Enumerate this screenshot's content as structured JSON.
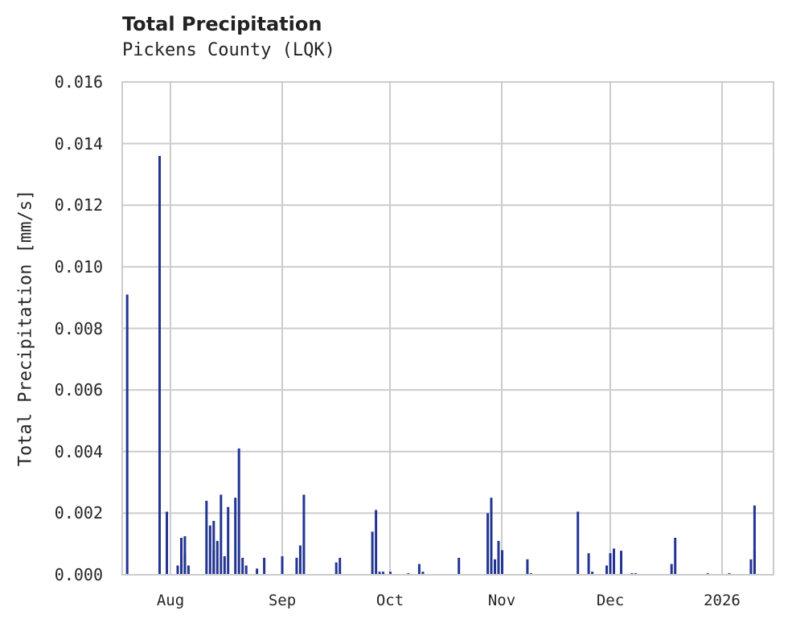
{
  "chart_data": {
    "type": "bar",
    "title": "Total Precipitation",
    "subtitle": "Pickens County (LQK)",
    "xlabel": "",
    "ylabel": "Total Precipitation [mm/s]",
    "ylim": [
      0,
      0.016
    ],
    "yticks": [
      "0.000",
      "0.002",
      "0.004",
      "0.006",
      "0.008",
      "0.010",
      "0.012",
      "0.014",
      "0.016"
    ],
    "xticks": [
      "Aug",
      "Sep",
      "Oct",
      "Nov",
      "Dec",
      "2026"
    ],
    "grid": true,
    "legend": null,
    "bar_color": "#233592",
    "x_unit": "date (2025-07-18 to 2026-01-12 approx.)",
    "points": [
      {
        "date": "2025-07-20",
        "value": 0.0091
      },
      {
        "date": "2025-07-29",
        "value": 0.0136
      },
      {
        "date": "2025-07-31",
        "value": 0.00205
      },
      {
        "date": "2025-08-03",
        "value": 0.0003
      },
      {
        "date": "2025-08-04",
        "value": 0.0012
      },
      {
        "date": "2025-08-05",
        "value": 0.00125
      },
      {
        "date": "2025-08-05",
        "value": 0.0007
      },
      {
        "date": "2025-08-06",
        "value": 0.0003
      },
      {
        "date": "2025-08-11",
        "value": 0.0024
      },
      {
        "date": "2025-08-12",
        "value": 0.0016
      },
      {
        "date": "2025-08-13",
        "value": 0.00175
      },
      {
        "date": "2025-08-13",
        "value": 0.0008
      },
      {
        "date": "2025-08-14",
        "value": 0.0011
      },
      {
        "date": "2025-08-15",
        "value": 0.0026
      },
      {
        "date": "2025-08-16",
        "value": 0.0006
      },
      {
        "date": "2025-08-17",
        "value": 0.0022
      },
      {
        "date": "2025-08-19",
        "value": 0.0025
      },
      {
        "date": "2025-08-20",
        "value": 0.0041
      },
      {
        "date": "2025-08-21",
        "value": 0.00055
      },
      {
        "date": "2025-08-22",
        "value": 0.0003
      },
      {
        "date": "2025-08-25",
        "value": 0.0002
      },
      {
        "date": "2025-08-27",
        "value": 0.00055
      },
      {
        "date": "2025-09-01",
        "value": 0.0006
      },
      {
        "date": "2025-09-05",
        "value": 0.00055
      },
      {
        "date": "2025-09-06",
        "value": 0.00095
      },
      {
        "date": "2025-09-07",
        "value": 0.0026
      },
      {
        "date": "2025-09-16",
        "value": 0.0004
      },
      {
        "date": "2025-09-17",
        "value": 0.00055
      },
      {
        "date": "2025-09-26",
        "value": 0.0014
      },
      {
        "date": "2025-09-27",
        "value": 0.0021
      },
      {
        "date": "2025-09-28",
        "value": 0.0001
      },
      {
        "date": "2025-09-29",
        "value": 0.0001
      },
      {
        "date": "2025-10-01",
        "value": 0.0001
      },
      {
        "date": "2025-10-06",
        "value": 5e-05
      },
      {
        "date": "2025-10-09",
        "value": 0.00035
      },
      {
        "date": "2025-10-10",
        "value": 0.0001
      },
      {
        "date": "2025-10-20",
        "value": 0.00055
      },
      {
        "date": "2025-10-28",
        "value": 0.002
      },
      {
        "date": "2025-10-29",
        "value": 0.0025
      },
      {
        "date": "2025-10-30",
        "value": 0.0005
      },
      {
        "date": "2025-10-31",
        "value": 0.0011
      },
      {
        "date": "2025-11-01",
        "value": 0.0008
      },
      {
        "date": "2025-11-08",
        "value": 0.0005
      },
      {
        "date": "2025-11-09",
        "value": 5e-05
      },
      {
        "date": "2025-11-22",
        "value": 0.00205
      },
      {
        "date": "2025-11-25",
        "value": 0.0007
      },
      {
        "date": "2025-11-26",
        "value": 0.0001
      },
      {
        "date": "2025-11-30",
        "value": 0.0003
      },
      {
        "date": "2025-12-01",
        "value": 0.0007
      },
      {
        "date": "2025-12-02",
        "value": 0.00085
      },
      {
        "date": "2025-12-04",
        "value": 0.00078
      },
      {
        "date": "2025-12-07",
        "value": 5e-05
      },
      {
        "date": "2025-12-08",
        "value": 5e-05
      },
      {
        "date": "2025-12-18",
        "value": 0.00035
      },
      {
        "date": "2025-12-19",
        "value": 0.0012
      },
      {
        "date": "2025-12-28",
        "value": 5e-05
      },
      {
        "date": "2026-01-03",
        "value": 5e-05
      },
      {
        "date": "2026-01-09",
        "value": 0.0005
      },
      {
        "date": "2026-01-10",
        "value": 0.00225
      },
      {
        "date": "2026-01-10",
        "value": 0.0008
      }
    ]
  },
  "axes": {
    "ylabel": "Total Precipitation [mm/s]"
  }
}
